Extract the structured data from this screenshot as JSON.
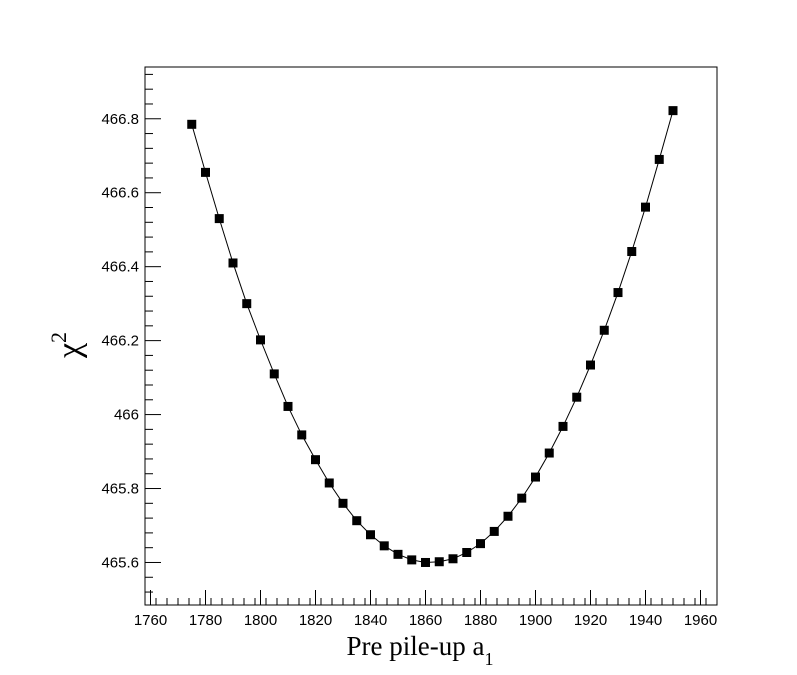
{
  "chart_data": {
    "type": "scatter",
    "xlabel": "Pre pile-up a",
    "xlabel_sub": "1",
    "ylabel": "χ",
    "ylabel_sup": "2",
    "xlim": [
      1758,
      1966
    ],
    "ylim": [
      465.485,
      466.94
    ],
    "x_ticks": [
      1760,
      1780,
      1800,
      1820,
      1840,
      1860,
      1880,
      1900,
      1920,
      1940,
      1960
    ],
    "x_tick_labels": [
      "1760",
      "1780",
      "1800",
      "1820",
      "1840",
      "1860",
      "1880",
      "1900",
      "1920",
      "1940",
      "1960"
    ],
    "y_ticks": [
      465.6,
      465.8,
      466.0,
      466.2,
      466.4,
      466.6,
      466.8
    ],
    "y_tick_labels": [
      "465.6",
      "465.8",
      "466",
      "466.2",
      "466.4",
      "466.6",
      "466.8"
    ],
    "grid": false,
    "legend": "none",
    "series": [
      {
        "marker": "square",
        "line": true,
        "color": "#000000",
        "x": [
          1775,
          1780,
          1785,
          1790,
          1795,
          1800,
          1805,
          1810,
          1815,
          1820,
          1825,
          1830,
          1835,
          1840,
          1845,
          1850,
          1855,
          1860,
          1865,
          1870,
          1875,
          1880,
          1885,
          1890,
          1895,
          1900,
          1905,
          1910,
          1915,
          1920,
          1925,
          1930,
          1935,
          1940,
          1945,
          1950
        ],
        "y": [
          466.785,
          466.655,
          466.53,
          466.41,
          466.3,
          466.202,
          466.11,
          466.022,
          465.945,
          465.878,
          465.815,
          465.76,
          465.713,
          465.675,
          465.645,
          465.622,
          465.607,
          465.6,
          465.602,
          465.61,
          465.627,
          465.651,
          465.684,
          465.725,
          465.774,
          465.831,
          465.896,
          465.968,
          466.047,
          466.134,
          466.228,
          466.33,
          466.441,
          466.561,
          466.69,
          466.822
        ]
      }
    ]
  }
}
